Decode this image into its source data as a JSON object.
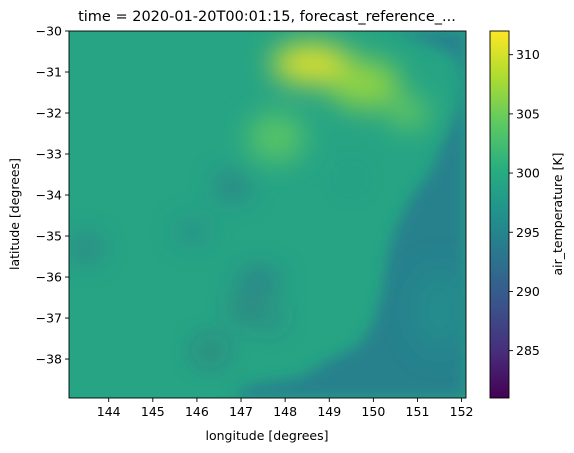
{
  "chart_data": {
    "type": "heatmap",
    "title": "time = 2020-01-20T00:01:15, forecast_reference_...",
    "xlabel": "longitude [degrees]",
    "ylabel": "latitude [degrees]",
    "xlim": [
      143.1,
      152.1
    ],
    "ylim": [
      -38.95,
      -30.0
    ],
    "x_ticks": [
      144,
      145,
      146,
      147,
      148,
      149,
      150,
      151,
      152
    ],
    "y_ticks": [
      -30,
      -31,
      -32,
      -33,
      -34,
      -35,
      -36,
      -37,
      -38
    ],
    "colorbar": {
      "label": "air_temperature [K]",
      "colormap": "viridis",
      "range": [
        281,
        312
      ],
      "ticks": [
        285,
        290,
        295,
        300,
        305,
        310
      ]
    },
    "field_features": [
      {
        "lon": 148.6,
        "lat": -30.8,
        "value": 311,
        "extent": [
          1.8,
          1.0
        ]
      },
      {
        "lon": 149.8,
        "lat": -31.3,
        "value": 307,
        "extent": [
          1.6,
          1.2
        ]
      },
      {
        "lon": 150.8,
        "lat": -32.0,
        "value": 305,
        "extent": [
          0.9,
          0.7
        ]
      },
      {
        "lon": 147.8,
        "lat": -32.6,
        "value": 304,
        "extent": [
          1.3,
          1.2
        ]
      },
      {
        "lon": 149.5,
        "lat": -33.6,
        "value": 290,
        "extent": [
          0.2,
          0.2
        ]
      },
      {
        "lon": 146.8,
        "lat": -33.8,
        "value": 291,
        "extent": [
          0.7,
          0.45
        ]
      },
      {
        "lon": 145.9,
        "lat": -34.9,
        "value": 293,
        "extent": [
          0.6,
          0.4
        ]
      },
      {
        "lon": 143.5,
        "lat": -35.3,
        "value": 290,
        "extent": [
          0.5,
          0.45
        ]
      },
      {
        "lon": 147.1,
        "lat": -36.8,
        "value": 286,
        "extent": [
          0.45,
          0.35
        ]
      },
      {
        "lon": 147.7,
        "lat": -37.0,
        "value": 287,
        "extent": [
          0.3,
          0.3
        ]
      },
      {
        "lon": 146.3,
        "lat": -37.8,
        "value": 285,
        "extent": [
          0.5,
          0.3
        ]
      },
      {
        "lon": 147.4,
        "lat": -36.1,
        "value": 291,
        "extent": [
          0.9,
          0.45
        ]
      },
      {
        "lon": 151.5,
        "lat": -36.8,
        "value": 296,
        "extent": [
          1.2,
          2.0
        ]
      }
    ],
    "background_value": 299,
    "ocean_value": 294.5,
    "grid": false,
    "legend": "colorbar-right"
  }
}
